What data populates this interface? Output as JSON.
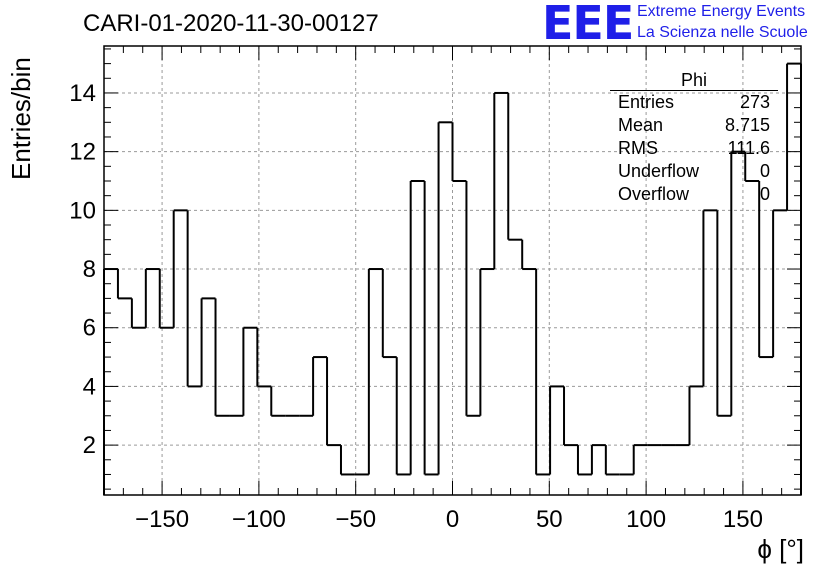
{
  "title": "CARI-01-2020-11-30-00127",
  "logo": {
    "mark": "EEE",
    "line1": "Extreme Energy Events",
    "line2": "La Scienza nelle Scuole",
    "color": "#1f1fe8"
  },
  "stats": {
    "name": "Phi",
    "rows": [
      {
        "label": "Entries",
        "value": "273"
      },
      {
        "label": "Mean",
        "value": "8.715"
      },
      {
        "label": "RMS",
        "value": "111.6"
      },
      {
        "label": "Underflow",
        "value": "0"
      },
      {
        "label": "Overflow",
        "value": "0"
      }
    ]
  },
  "chart_data": {
    "type": "bar",
    "style": "step-histogram",
    "xlabel": "ϕ [°]",
    "ylabel": "Entries/bin",
    "xlim": [
      -180,
      180
    ],
    "ylim": [
      0.3,
      15.6
    ],
    "bin_width": 7.2,
    "grid": true,
    "x_ticks": [
      -150,
      -100,
      -50,
      0,
      50,
      100,
      150
    ],
    "x_tick_labels": [
      "−150",
      "−100",
      "−50",
      "0",
      "50",
      "100",
      "150"
    ],
    "y_ticks": [
      2,
      4,
      6,
      8,
      10,
      12,
      14
    ],
    "y_tick_labels": [
      "2",
      "4",
      "6",
      "8",
      "10",
      "12",
      "14"
    ],
    "values": [
      8,
      7,
      6,
      8,
      6,
      10,
      4,
      7,
      3,
      3,
      6,
      4,
      3,
      3,
      3,
      5,
      2,
      1,
      1,
      8,
      5,
      1,
      11,
      1,
      13,
      11,
      3,
      8,
      14,
      9,
      8,
      1,
      4,
      2,
      1,
      2,
      1,
      1,
      2,
      2,
      2,
      2,
      4,
      10,
      3,
      12,
      11,
      5,
      10,
      15
    ]
  }
}
